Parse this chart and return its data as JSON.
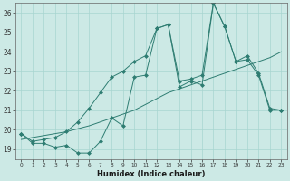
{
  "xlabel": "Humidex (Indice chaleur)",
  "background_color": "#cce9e5",
  "line_color": "#2e7d72",
  "xlim": [
    -0.5,
    23.5
  ],
  "ylim": [
    18.5,
    26.5
  ],
  "yticks": [
    19,
    20,
    21,
    22,
    23,
    24,
    25,
    26
  ],
  "xticks": [
    0,
    1,
    2,
    3,
    4,
    5,
    6,
    7,
    8,
    9,
    10,
    11,
    12,
    13,
    14,
    15,
    16,
    17,
    18,
    19,
    20,
    21,
    22,
    23
  ],
  "series": [
    {
      "x": [
        0,
        1,
        2,
        3,
        4,
        5,
        6,
        7,
        8,
        9,
        10,
        11,
        12,
        13,
        14,
        15,
        16,
        17,
        18,
        19,
        20,
        21,
        22,
        23
      ],
      "y": [
        19.8,
        19.3,
        19.3,
        19.1,
        19.2,
        18.8,
        18.8,
        19.4,
        20.6,
        20.2,
        22.7,
        22.8,
        25.2,
        25.4,
        22.2,
        22.5,
        22.3,
        26.5,
        25.3,
        23.5,
        23.8,
        22.9,
        21.1,
        21.0
      ],
      "markers": true,
      "linestyle": "-"
    },
    {
      "x": [
        0,
        1,
        2,
        3,
        4,
        5,
        6,
        7,
        8,
        9,
        10,
        11,
        12,
        13,
        14,
        15,
        16,
        17,
        18,
        19,
        20,
        21,
        22,
        23
      ],
      "y": [
        19.5,
        19.6,
        19.7,
        19.8,
        19.9,
        20.05,
        20.2,
        20.4,
        20.6,
        20.8,
        21.0,
        21.3,
        21.6,
        21.9,
        22.1,
        22.3,
        22.5,
        22.7,
        22.9,
        23.1,
        23.3,
        23.5,
        23.7,
        24.0
      ],
      "markers": false,
      "linestyle": "-"
    },
    {
      "x": [
        0,
        1,
        2,
        3,
        4,
        5,
        6,
        7,
        8,
        9,
        10,
        11,
        12,
        13,
        14,
        15,
        16,
        17,
        18,
        19,
        20,
        21,
        22,
        23
      ],
      "y": [
        19.8,
        19.4,
        19.5,
        19.6,
        19.9,
        20.4,
        21.1,
        21.9,
        22.7,
        23.0,
        23.5,
        23.8,
        25.2,
        25.4,
        22.5,
        22.6,
        22.8,
        26.5,
        25.3,
        23.5,
        23.6,
        22.8,
        21.0,
        21.0
      ],
      "markers": true,
      "linestyle": "-"
    }
  ]
}
